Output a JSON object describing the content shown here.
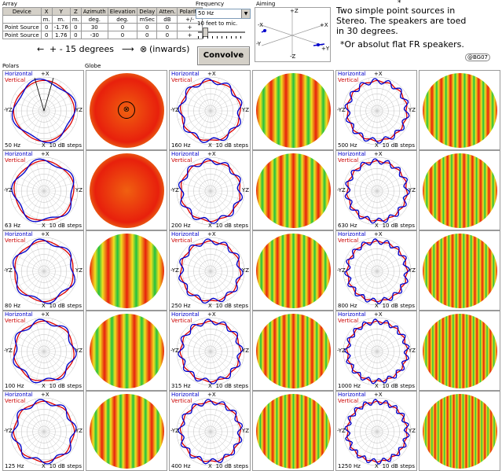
{
  "array": {
    "title": "Array",
    "headers": [
      "Device",
      "X",
      "Y",
      "Z",
      "Azimuth",
      "Elevation",
      "Delay",
      "Atten.",
      "Polarity"
    ],
    "units": [
      "",
      "m.",
      "m.",
      "m.",
      "deg.",
      "deg.",
      "mSec",
      "dB",
      "+/-"
    ],
    "rows": [
      [
        "Point Source",
        "0",
        "-1.76",
        "0",
        "30",
        "0",
        "0",
        "0",
        "+"
      ],
      [
        "Point Source",
        "0",
        "1.76",
        "0",
        "-30",
        "0",
        "0",
        "0",
        "+"
      ]
    ]
  },
  "frequency": {
    "title": "Frequency",
    "value": "50 Hz",
    "slider_label": "10 feet to mic.",
    "convolve_label": "Convolve"
  },
  "aiming": {
    "title": "Aiming",
    "axis_labels": [
      "+X",
      "+Y",
      "-Y",
      "+Z",
      "-Z",
      "-X"
    ]
  },
  "note": {
    "asterisk": "*",
    "line1": "Two simple point sources in",
    "line2": "Stereo. The speakers are toed",
    "line3": "in 30 degrees.",
    "line4": "*Or absolut flat FR speakers.",
    "badge": "@BG07"
  },
  "annotation": {
    "text": "+ - 15 degrees",
    "target": "(inwards)",
    "symbol": "⊗"
  },
  "sections": {
    "polars": "Polars",
    "globe": "Globe"
  },
  "legend": {
    "horizontal": "Horizontal",
    "vertical": "Vertical",
    "steps": "10 dB steps",
    "top": "+X",
    "bottom": "X",
    "left": "-YZ",
    "right": "YZ"
  },
  "colors": {
    "horizontal": "#0000cc",
    "vertical": "#dd0000",
    "globe_hot": "#e8200c",
    "globe_mid": "#f0e020",
    "globe_cold": "#20c040"
  },
  "columns": [
    {
      "freqs": [
        "50 Hz",
        "63 Hz",
        "80 Hz",
        "100 Hz",
        "125 Hz"
      ]
    },
    {
      "freqs": [
        "160 Hz",
        "200 Hz",
        "250 Hz",
        "315 Hz",
        "400 Hz"
      ]
    },
    {
      "freqs": [
        "500 Hz",
        "630 Hz",
        "800 Hz",
        "1000 Hz",
        "1250 Hz"
      ]
    }
  ]
}
